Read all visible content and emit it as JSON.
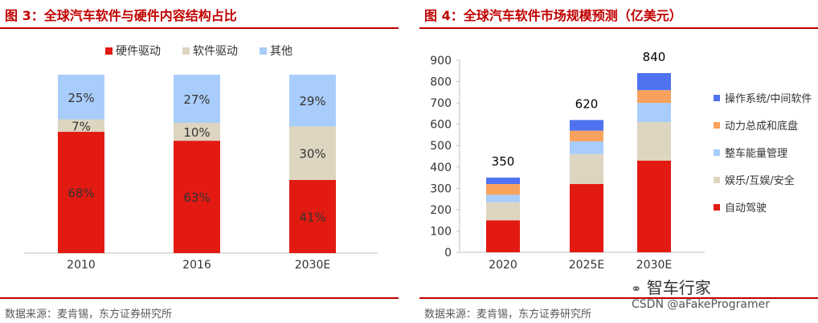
{
  "colors": {
    "hardware_red": "#e21a12",
    "software_beige": "#ddd5c0",
    "other_blue": "#a9cdfa",
    "os_blue": "#4f73f0",
    "power_orange": "#f8a25e",
    "vehicle_lightblue": "#a9cdfa",
    "ent_beige": "#ddd5c0",
    "ad_red": "#e21a12",
    "accent_red": "#c00000"
  },
  "left": {
    "title": "图 3：全球汽车软件与硬件内容结构占比",
    "source": "数据来源：麦肯锡，东方证券研究所"
  },
  "right": {
    "title": "图 4：全球汽车软件市场规模预测（亿美元）",
    "source": "数据来源：麦肯锡，东方证券研究所"
  },
  "watermark": {
    "brand": "智车行家",
    "icon": "wechat-icon",
    "csdn": "CSDN @aFakeProgramer"
  },
  "chart_data": [
    {
      "type": "bar",
      "stacked": true,
      "percent": true,
      "categories": [
        "2010",
        "2016",
        "2030E"
      ],
      "series": [
        {
          "name": "硬件驱动",
          "values": [
            68,
            63,
            41
          ],
          "labels": [
            "68%",
            "63%",
            "41%"
          ]
        },
        {
          "name": "软件驱动",
          "values": [
            7,
            10,
            30
          ],
          "labels": [
            "7%",
            "10%",
            "30%"
          ]
        },
        {
          "name": "其他",
          "values": [
            25,
            27,
            29
          ],
          "labels": [
            "25%",
            "27%",
            "29%"
          ]
        }
      ],
      "legend": "top",
      "grid": false
    },
    {
      "type": "bar",
      "stacked": true,
      "categories": [
        "2020",
        "2025E",
        "2030E"
      ],
      "totals": [
        350,
        620,
        840
      ],
      "total_labels": [
        "350",
        "620",
        "840"
      ],
      "series": [
        {
          "name": "自动驾驶",
          "values": [
            150,
            320,
            430
          ]
        },
        {
          "name": "娱乐/互娱/安全",
          "values": [
            85,
            140,
            180
          ]
        },
        {
          "name": "整车能量管理",
          "values": [
            35,
            60,
            90
          ]
        },
        {
          "name": "动力总成和底盘",
          "values": [
            50,
            50,
            60
          ]
        },
        {
          "name": "操作系统/中间软件",
          "values": [
            30,
            50,
            80
          ]
        }
      ],
      "yticks": [
        "0",
        "100",
        "200",
        "300",
        "400",
        "500",
        "600",
        "700",
        "800",
        "900"
      ],
      "ylim": [
        0,
        900
      ],
      "legend": "right",
      "grid": false
    }
  ]
}
